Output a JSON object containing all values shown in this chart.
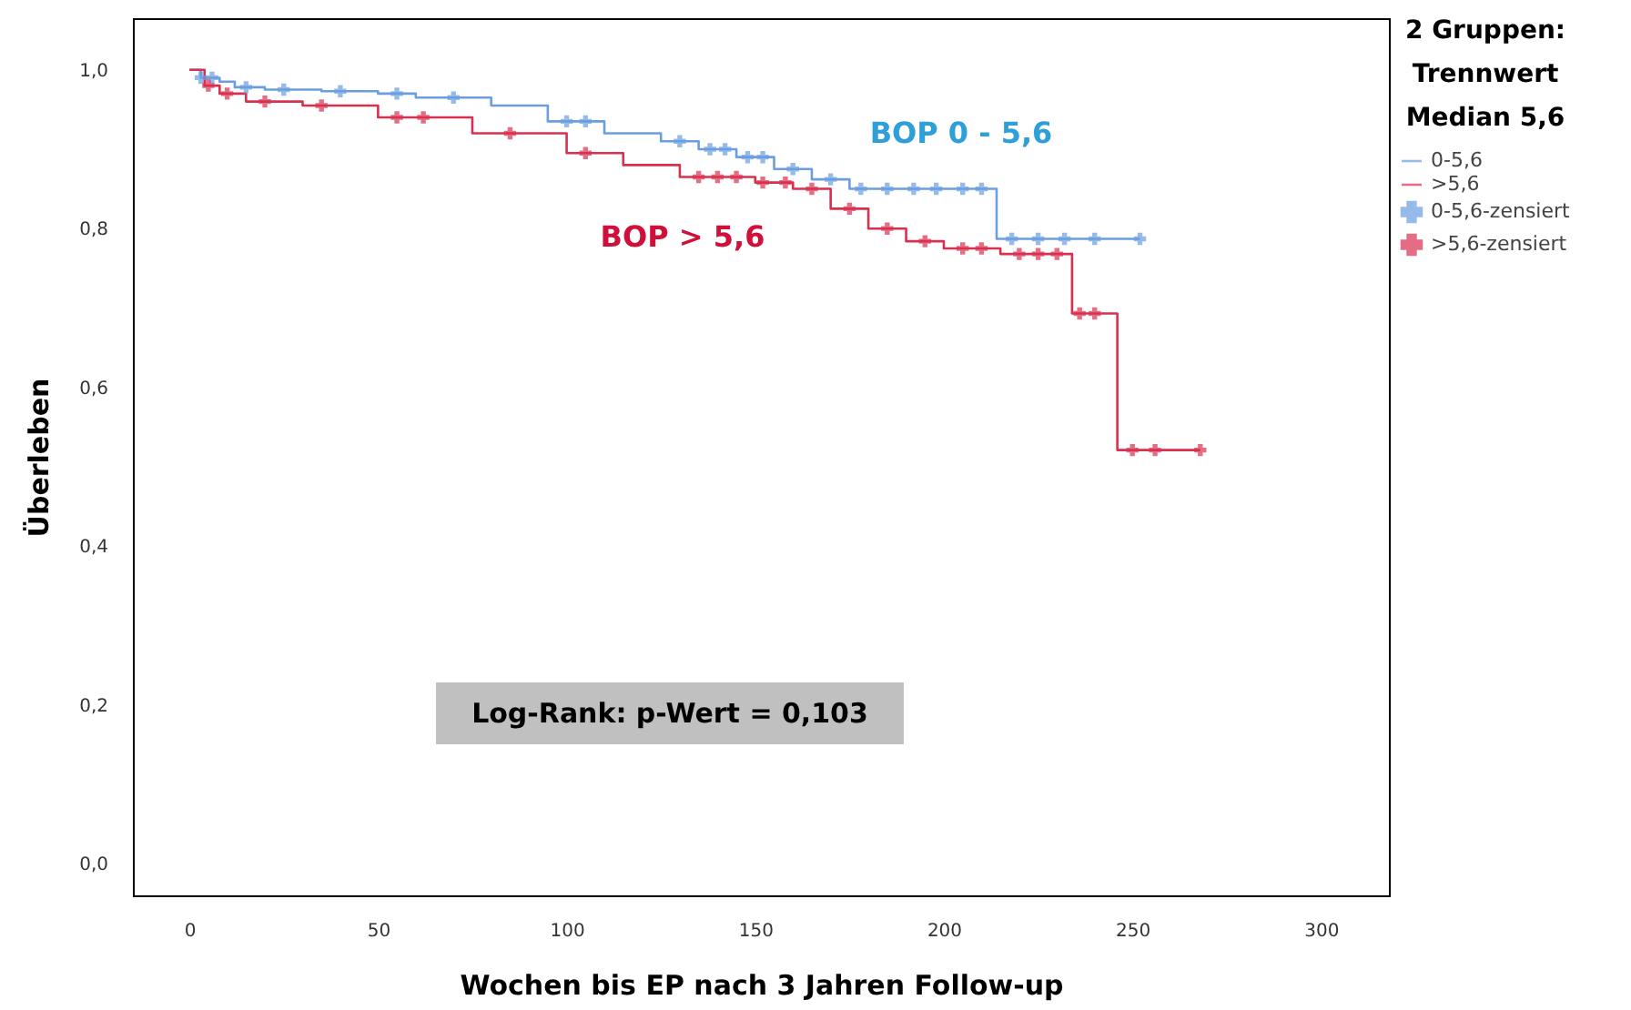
{
  "chart_data": {
    "type": "line",
    "xlabel": "Wochen bis EP nach 3 Jahren Follow-up",
    "ylabel": "Überleben",
    "legend_title": "2 Gruppen: Trennwert Median 5,6",
    "legend": "right",
    "grid": false,
    "xlim": [
      -15,
      318
    ],
    "xticks": [
      0,
      50,
      100,
      150,
      200,
      250,
      300
    ],
    "ylim": [
      -0.04,
      1.065
    ],
    "yticks": [
      {
        "value": 0,
        "label": "0,0"
      },
      {
        "value": 0.2,
        "label": "0,2"
      },
      {
        "value": 0.4,
        "label": "0,4"
      },
      {
        "value": 0.6,
        "label": "0,6"
      },
      {
        "value": 0.8,
        "label": "0,8"
      },
      {
        "value": 1,
        "label": "1,0"
      }
    ],
    "series": [
      {
        "name": "0-5,6",
        "color": "#6a9ee0",
        "x": [
          0,
          3,
          3,
          8,
          8,
          12,
          12,
          20,
          20,
          35,
          35,
          50,
          50,
          60,
          60,
          80,
          80,
          95,
          95,
          110,
          110,
          125,
          125,
          135,
          135,
          145,
          145,
          155,
          155,
          165,
          165,
          175,
          175,
          214,
          214,
          252
        ],
        "values": [
          1,
          1,
          0.99,
          0.99,
          0.985,
          0.985,
          0.978,
          0.978,
          0.975,
          0.975,
          0.973,
          0.973,
          0.97,
          0.97,
          0.965,
          0.965,
          0.955,
          0.955,
          0.935,
          0.935,
          0.92,
          0.92,
          0.91,
          0.91,
          0.9,
          0.9,
          0.89,
          0.89,
          0.875,
          0.875,
          0.862,
          0.862,
          0.85,
          0.85,
          0.787,
          0.787
        ]
      },
      {
        "name": ">5,6",
        "color": "#d9304f",
        "x": [
          0,
          4,
          4,
          8,
          8,
          15,
          15,
          30,
          30,
          50,
          50,
          75,
          75,
          100,
          100,
          115,
          115,
          130,
          130,
          150,
          150,
          160,
          160,
          170,
          170,
          180,
          180,
          190,
          190,
          200,
          200,
          215,
          215,
          234,
          234,
          246,
          246,
          268
        ],
        "values": [
          1,
          1,
          0.98,
          0.98,
          0.97,
          0.97,
          0.96,
          0.96,
          0.955,
          0.955,
          0.94,
          0.94,
          0.92,
          0.92,
          0.895,
          0.895,
          0.88,
          0.88,
          0.865,
          0.865,
          0.858,
          0.858,
          0.85,
          0.85,
          0.825,
          0.825,
          0.8,
          0.8,
          0.784,
          0.784,
          0.775,
          0.775,
          0.768,
          0.768,
          0.693,
          0.693,
          0.521,
          0.521
        ]
      },
      {
        "name": "0-5,6-zensiert",
        "type": "scatter",
        "marker": "cross",
        "color": "#6a9ee0",
        "x": [
          3,
          6,
          15,
          25,
          40,
          55,
          70,
          100,
          105,
          130,
          138,
          142,
          148,
          152,
          160,
          170,
          178,
          185,
          192,
          198,
          205,
          210,
          218,
          225,
          232,
          240,
          252
        ],
        "values": [
          0.99,
          0.99,
          0.978,
          0.975,
          0.973,
          0.97,
          0.965,
          0.935,
          0.935,
          0.91,
          0.9,
          0.9,
          0.89,
          0.89,
          0.875,
          0.862,
          0.85,
          0.85,
          0.85,
          0.85,
          0.85,
          0.85,
          0.787,
          0.787,
          0.787,
          0.787,
          0.787
        ]
      },
      {
        "name": ">5,6-zensiert",
        "type": "scatter",
        "marker": "cross",
        "color": "#d9304f",
        "x": [
          5,
          10,
          20,
          35,
          55,
          62,
          85,
          105,
          135,
          140,
          145,
          152,
          158,
          165,
          175,
          185,
          195,
          205,
          210,
          220,
          225,
          230,
          236,
          240,
          250,
          256,
          268
        ],
        "values": [
          0.98,
          0.97,
          0.96,
          0.955,
          0.94,
          0.94,
          0.92,
          0.895,
          0.865,
          0.865,
          0.865,
          0.858,
          0.858,
          0.85,
          0.825,
          0.8,
          0.784,
          0.775,
          0.775,
          0.768,
          0.768,
          0.768,
          0.693,
          0.693,
          0.521,
          0.521,
          0.521
        ]
      }
    ],
    "annotations": [
      "BOP 0 - 5,6",
      "BOP > 5,6",
      "Log-Rank: p-Wert = 0,103"
    ]
  }
}
